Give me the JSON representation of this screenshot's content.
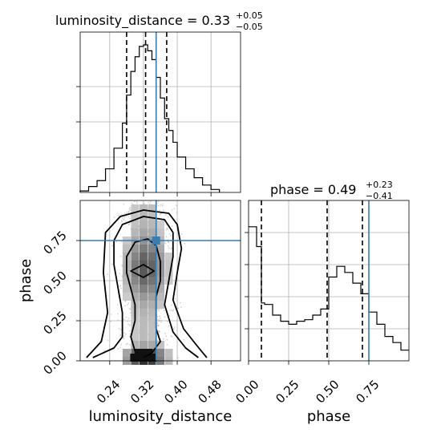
{
  "chart_data": {
    "type": "corner",
    "parameters": [
      "luminosity_distance",
      "phase"
    ],
    "truth": {
      "luminosity_distance": 0.35,
      "phase": 0.75
    },
    "colors": {
      "truth": "#3a7cb0",
      "histogram": "#000000",
      "quantile": "#000000"
    },
    "luminosity_distance": {
      "title_main": "luminosity_distance = 0.33",
      "title_plus": "+0.05",
      "title_minus": "−0.05",
      "xlabel": "luminosity_distance",
      "xlim": [
        0.17,
        0.55
      ],
      "ticks": [
        0.24,
        0.32,
        0.4,
        0.48
      ],
      "tick_labels": [
        "0.24",
        "0.32",
        "0.40",
        "0.48"
      ],
      "quantiles": [
        0.28,
        0.325,
        0.375
      ],
      "hist_edges": [
        0.17,
        0.19,
        0.21,
        0.23,
        0.25,
        0.27,
        0.28,
        0.29,
        0.3,
        0.31,
        0.32,
        0.33,
        0.34,
        0.35,
        0.36,
        0.37,
        0.38,
        0.39,
        0.4,
        0.42,
        0.44,
        0.46,
        0.48,
        0.5
      ],
      "hist_counts": [
        0.01,
        0.04,
        0.08,
        0.16,
        0.3,
        0.47,
        0.66,
        0.82,
        0.92,
        0.99,
        1.0,
        0.96,
        0.9,
        0.78,
        0.64,
        0.5,
        0.42,
        0.34,
        0.24,
        0.16,
        0.1,
        0.05,
        0.02
      ]
    },
    "phase": {
      "title_main": "phase = 0.49",
      "title_plus": "+0.23",
      "title_minus": "−0.41",
      "xlabel": "phase",
      "ylabel": "phase",
      "xlim": [
        0.0,
        1.0
      ],
      "ticks": [
        0.0,
        0.25,
        0.5,
        0.75
      ],
      "tick_labels": [
        "0.00",
        "0.25",
        "0.50",
        "0.75"
      ],
      "quantiles": [
        0.08,
        0.49,
        0.71
      ],
      "hist_edges": [
        0.0,
        0.05,
        0.08,
        0.1,
        0.15,
        0.2,
        0.25,
        0.3,
        0.35,
        0.4,
        0.45,
        0.5,
        0.55,
        0.6,
        0.65,
        0.7,
        0.75,
        0.8,
        0.85,
        0.9,
        0.95,
        1.0
      ],
      "hist_counts": [
        0.88,
        0.75,
        0.38,
        0.37,
        0.3,
        0.26,
        0.24,
        0.26,
        0.27,
        0.3,
        0.34,
        0.55,
        0.62,
        0.58,
        0.51,
        0.44,
        0.32,
        0.24,
        0.16,
        0.12,
        0.07
      ]
    },
    "joint": {
      "contours": [
        [
          [
            0.32,
            0.02
          ],
          [
            0.34,
            0.05
          ],
          [
            0.36,
            0.12
          ],
          [
            0.35,
            0.2
          ],
          [
            0.35,
            0.3
          ],
          [
            0.35,
            0.4
          ],
          [
            0.36,
            0.5
          ],
          [
            0.36,
            0.62
          ],
          [
            0.35,
            0.72
          ],
          [
            0.33,
            0.76
          ],
          [
            0.3,
            0.74
          ],
          [
            0.28,
            0.65
          ],
          [
            0.28,
            0.55
          ],
          [
            0.29,
            0.45
          ],
          [
            0.3,
            0.35
          ],
          [
            0.3,
            0.25
          ],
          [
            0.29,
            0.15
          ],
          [
            0.3,
            0.06
          ]
        ],
        [
          [
            0.2,
            0.02
          ],
          [
            0.25,
            0.08
          ],
          [
            0.27,
            0.15
          ],
          [
            0.27,
            0.3
          ],
          [
            0.26,
            0.45
          ],
          [
            0.25,
            0.6
          ],
          [
            0.25,
            0.75
          ],
          [
            0.27,
            0.85
          ],
          [
            0.32,
            0.9
          ],
          [
            0.37,
            0.88
          ],
          [
            0.39,
            0.8
          ],
          [
            0.39,
            0.65
          ],
          [
            0.38,
            0.5
          ],
          [
            0.37,
            0.35
          ],
          [
            0.39,
            0.18
          ],
          [
            0.42,
            0.08
          ],
          [
            0.45,
            0.02
          ]
        ],
        [
          [
            0.185,
            0.02
          ],
          [
            0.22,
            0.12
          ],
          [
            0.235,
            0.3
          ],
          [
            0.225,
            0.55
          ],
          [
            0.23,
            0.8
          ],
          [
            0.265,
            0.9
          ],
          [
            0.32,
            0.94
          ],
          [
            0.38,
            0.92
          ],
          [
            0.4,
            0.85
          ],
          [
            0.41,
            0.7
          ],
          [
            0.4,
            0.55
          ],
          [
            0.39,
            0.38
          ],
          [
            0.415,
            0.2
          ],
          [
            0.445,
            0.1
          ],
          [
            0.47,
            0.02
          ]
        ]
      ],
      "inner_diamond": [
        [
          0.29,
          0.56
        ],
        [
          0.32,
          0.6
        ],
        [
          0.345,
          0.56
        ],
        [
          0.32,
          0.52
        ]
      ]
    }
  }
}
